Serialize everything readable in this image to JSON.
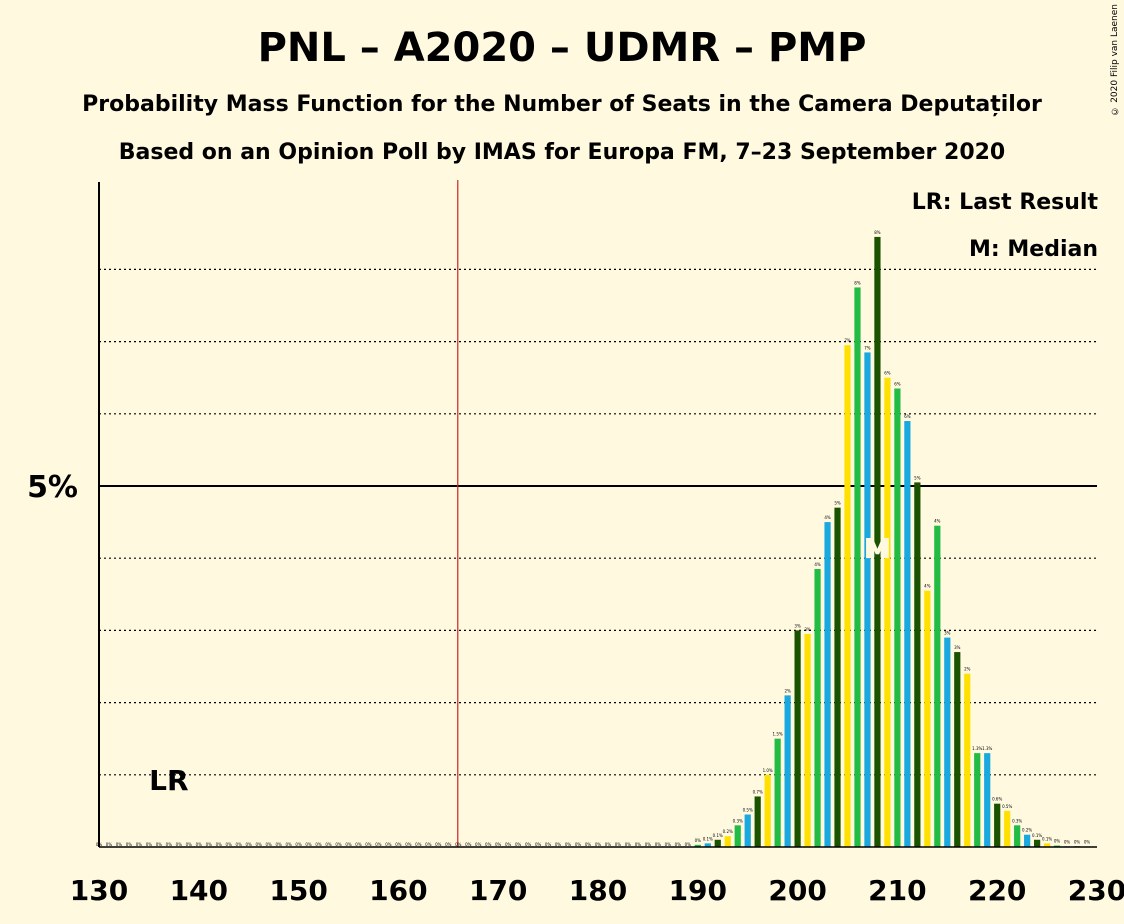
{
  "header": {
    "title": "PNL – A2020 – UDMR – PMP",
    "subtitle1": "Probability Mass Function for the Number of Seats in the Camera Deputaților",
    "subtitle2": "Based on an Opinion Poll by IMAS for Europa FM, 7–23 September 2020",
    "credit": "© 2020 Filip van Laenen"
  },
  "legend": {
    "lr": "LR: Last Result",
    "m": "M: Median"
  },
  "markers": {
    "last_result_label": "LR",
    "median_label": "M",
    "last_result_seat": 137,
    "median_seat": 208,
    "majority_line_seat": 166
  },
  "colors": {
    "background": "#FFF9E0",
    "blue": "#1AA8E0",
    "darkgreen": "#1A5200",
    "yellow": "#FFE000",
    "green": "#22BB44",
    "majority_line": "#CC2222"
  },
  "chart_data": {
    "type": "bar",
    "title": "PNL – A2020 – UDMR – PMP",
    "xlabel": "",
    "ylabel": "",
    "xlim": [
      130,
      230
    ],
    "ylim": [
      0,
      9.2
    ],
    "x_ticks": [
      "130",
      "140",
      "150",
      "160",
      "170",
      "180",
      "190",
      "200",
      "210",
      "220",
      "230"
    ],
    "y_ticks": [
      {
        "value": 5,
        "label": "5%"
      }
    ],
    "grid": "dotted horizontal lines every 1%",
    "x": [
      190,
      191,
      192,
      193,
      194,
      195,
      196,
      197,
      198,
      199,
      200,
      201,
      202,
      203,
      204,
      205,
      206,
      207,
      208,
      209,
      210,
      211,
      212,
      213,
      214,
      215,
      216,
      217,
      218,
      219,
      220,
      221,
      222,
      223,
      224,
      225,
      226,
      227,
      228,
      229
    ],
    "values": [
      0.03,
      0.05,
      0.1,
      0.15,
      0.3,
      0.45,
      0.7,
      1.0,
      1.5,
      2.1,
      3.0,
      2.95,
      3.85,
      4.5,
      4.7,
      6.95,
      7.75,
      6.85,
      8.45,
      6.5,
      6.35,
      5.9,
      5.05,
      3.55,
      4.45,
      2.9,
      2.7,
      2.4,
      1.3,
      1.3,
      0.6,
      0.5,
      0.3,
      0.17,
      0.1,
      0.05,
      0.02,
      0.01,
      0.01,
      0.01
    ],
    "data_labels": [
      "0%",
      "0.1%",
      "0.1%",
      "0.2%",
      "0.3%",
      "0.5%",
      "0.7%",
      "1.0%",
      "1.5%",
      "2%",
      "3%",
      "3%",
      "4%",
      "4%",
      "5%",
      "7%",
      "8%",
      "7%",
      "8%",
      "6%",
      "6%",
      "6%",
      "5%",
      "4%",
      "4%",
      "3%",
      "3%",
      "2%",
      "1.3%",
      "1.3%",
      "0.6%",
      "0.5%",
      "0.3%",
      "0.2%",
      "0.1%",
      "0.1%",
      "0%",
      "0%",
      "0%",
      "0%"
    ],
    "zero_label": "0%"
  }
}
